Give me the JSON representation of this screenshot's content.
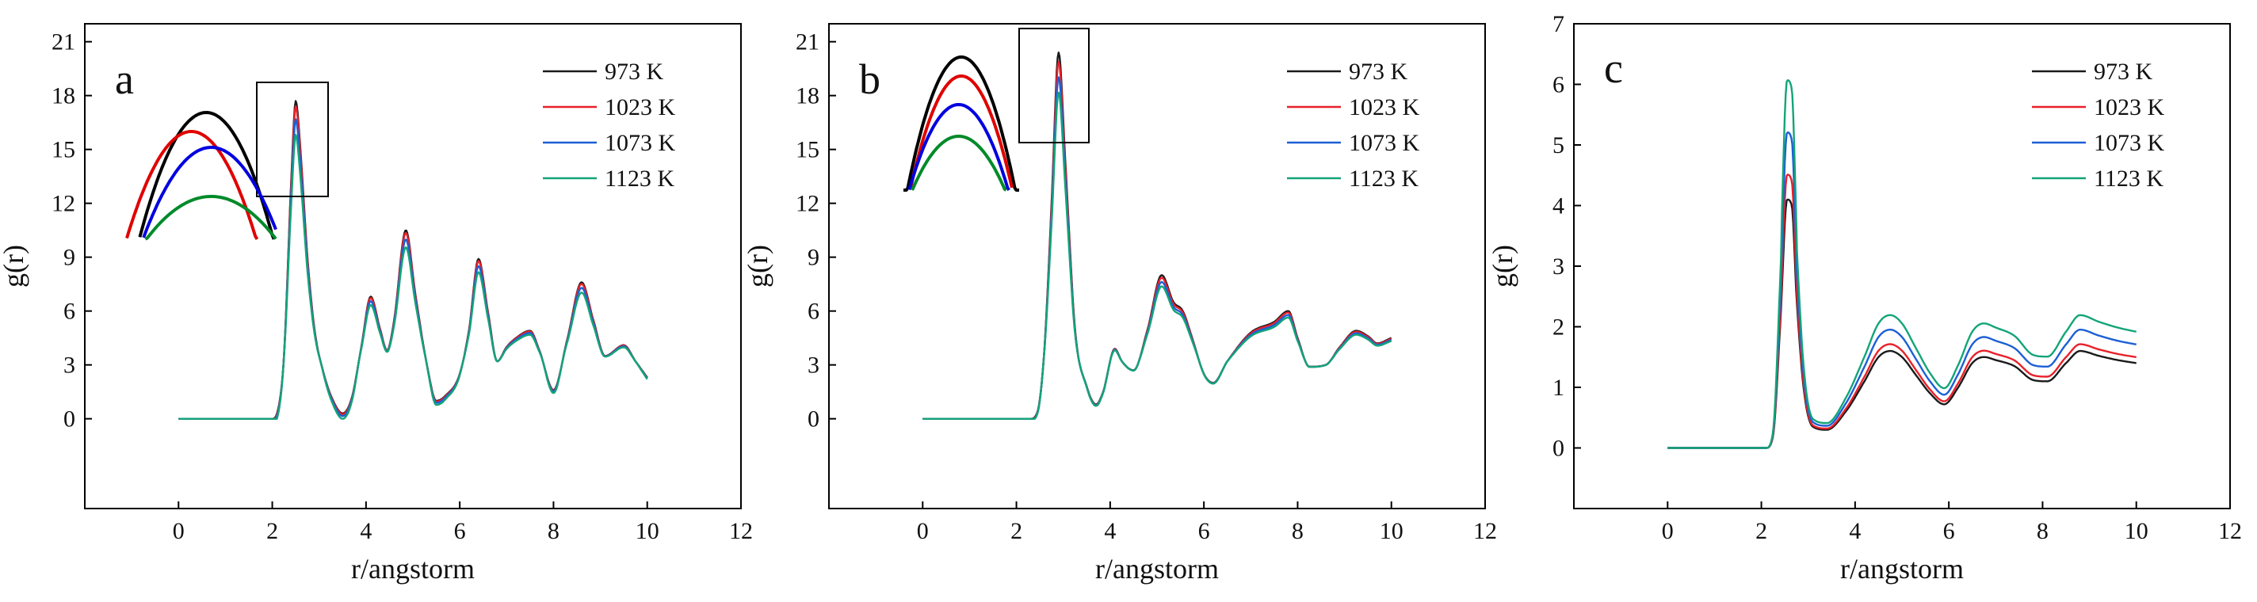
{
  "figure": {
    "panels": [
      "a",
      "b",
      "c"
    ]
  },
  "colors": {
    "973 K": "#1a1a1a",
    "1023 K": "#e8212a",
    "1073 K": "#1c5fd6",
    "1123 K": "#13a478"
  },
  "inset_colors": {
    "973 K": "#000000",
    "1023 K": "#e00000",
    "1073 K": "#0000e0",
    "1123 K": "#008a2a"
  },
  "chart_data": [
    {
      "type": "line",
      "panel": "a",
      "title": "",
      "xlabel": "r/angstorm",
      "ylabel": "g(r)",
      "xlim": [
        -2,
        12
      ],
      "ylim": [
        -5,
        22
      ],
      "xticks": [
        0,
        2,
        4,
        6,
        8,
        10,
        12
      ],
      "yticks": [
        0,
        3,
        6,
        9,
        12,
        15,
        18,
        21
      ],
      "legend_position": "top-right",
      "has_zoom_inset": true,
      "inset_xlim": [
        -1.1,
        1.9
      ],
      "inset_ylim": [
        0,
        1
      ],
      "keypoints": [
        [
          0,
          0
        ],
        [
          2.0,
          0
        ],
        [
          2.1,
          0.3
        ],
        [
          2.25,
          3.5
        ],
        [
          2.4,
          13.0
        ],
        [
          2.5,
          17.7
        ],
        [
          2.6,
          15.0
        ],
        [
          2.75,
          9.0
        ],
        [
          2.9,
          5.0
        ],
        [
          3.1,
          2.5
        ],
        [
          3.3,
          1.0
        ],
        [
          3.5,
          0.3
        ],
        [
          3.7,
          1.2
        ],
        [
          3.9,
          4.0
        ],
        [
          4.1,
          6.8
        ],
        [
          4.3,
          5.0
        ],
        [
          4.45,
          3.8
        ],
        [
          4.6,
          5.5
        ],
        [
          4.85,
          10.5
        ],
        [
          5.05,
          7.0
        ],
        [
          5.3,
          3.0
        ],
        [
          5.5,
          1.0
        ],
        [
          5.7,
          1.3
        ],
        [
          6.0,
          2.5
        ],
        [
          6.2,
          5.0
        ],
        [
          6.4,
          8.9
        ],
        [
          6.6,
          6.0
        ],
        [
          6.8,
          3.2
        ],
        [
          7.0,
          4.0
        ],
        [
          7.2,
          4.5
        ],
        [
          7.5,
          4.9
        ],
        [
          7.7,
          3.8
        ],
        [
          8.0,
          1.6
        ],
        [
          8.3,
          4.5
        ],
        [
          8.6,
          7.6
        ],
        [
          8.85,
          5.5
        ],
        [
          9.1,
          3.5
        ],
        [
          9.5,
          4.1
        ],
        [
          9.75,
          3.2
        ],
        [
          10.0,
          2.3
        ]
      ],
      "series": [
        {
          "name": "973 K",
          "peak_scale": 1.0,
          "valley_scale": 1.0,
          "inset_peak": 0.88,
          "inset_center": 0.5,
          "inset_base": 0.02
        },
        {
          "name": "1023 K",
          "peak_scale": 0.98,
          "valley_scale": 1.05,
          "inset_peak": 0.76,
          "inset_center": 0.2,
          "inset_base": -0.02
        },
        {
          "name": "1073 K",
          "peak_scale": 0.93,
          "valley_scale": 1.15,
          "inset_peak": 0.66,
          "inset_center": 0.6,
          "inset_base": 0.06
        },
        {
          "name": "1123 K",
          "peak_scale": 0.87,
          "valley_scale": 1.3,
          "inset_peak": 0.35,
          "inset_center": 0.6,
          "inset_base": 0.04
        }
      ]
    },
    {
      "type": "line",
      "panel": "b",
      "title": "",
      "xlabel": "r/angstorm",
      "ylabel": "g(r)",
      "xlim": [
        -2,
        12
      ],
      "ylim": [
        -5,
        22
      ],
      "xticks": [
        0,
        2,
        4,
        6,
        8,
        10,
        12
      ],
      "yticks": [
        0,
        3,
        6,
        9,
        12,
        15,
        18,
        21
      ],
      "legend_position": "top-right",
      "has_zoom_inset": true,
      "inset_xlim": [
        -0.2,
        2.0
      ],
      "inset_ylim": [
        0,
        1
      ],
      "keypoints": [
        [
          0,
          0
        ],
        [
          2.3,
          0
        ],
        [
          2.45,
          0.4
        ],
        [
          2.6,
          4.0
        ],
        [
          2.75,
          12.0
        ],
        [
          2.9,
          20.4
        ],
        [
          3.05,
          14.0
        ],
        [
          3.25,
          5.0
        ],
        [
          3.5,
          1.8
        ],
        [
          3.7,
          0.8
        ],
        [
          3.85,
          1.5
        ],
        [
          4.1,
          3.9
        ],
        [
          4.25,
          3.2
        ],
        [
          4.5,
          2.7
        ],
        [
          4.8,
          5.0
        ],
        [
          5.1,
          8.0
        ],
        [
          5.35,
          6.5
        ],
        [
          5.55,
          6.0
        ],
        [
          5.75,
          4.5
        ],
        [
          6.0,
          2.5
        ],
        [
          6.2,
          2.0
        ],
        [
          6.5,
          3.2
        ],
        [
          7.0,
          4.8
        ],
        [
          7.5,
          5.4
        ],
        [
          7.8,
          6.0
        ],
        [
          8.0,
          4.5
        ],
        [
          8.25,
          2.9
        ],
        [
          8.6,
          3.0
        ],
        [
          8.9,
          4.0
        ],
        [
          9.25,
          4.9
        ],
        [
          9.5,
          4.6
        ],
        [
          9.7,
          4.2
        ],
        [
          10.0,
          4.5
        ]
      ],
      "series": [
        {
          "name": "973 K",
          "peak_scale": 1.0,
          "valley_scale": 1.0,
          "inset_peak": 0.92,
          "inset_center": 0.9,
          "inset_base": 0.08
        },
        {
          "name": "1023 K",
          "peak_scale": 0.97,
          "valley_scale": 1.03,
          "inset_peak": 0.8,
          "inset_center": 0.9,
          "inset_base": 0.0
        },
        {
          "name": "1073 K",
          "peak_scale": 0.92,
          "valley_scale": 1.06,
          "inset_peak": 0.62,
          "inset_center": 0.85,
          "inset_base": -0.02
        },
        {
          "name": "1123 K",
          "peak_scale": 0.87,
          "valley_scale": 1.1,
          "inset_peak": 0.42,
          "inset_center": 0.85,
          "inset_base": -0.04
        }
      ]
    },
    {
      "type": "line",
      "panel": "c",
      "title": "",
      "xlabel": "r/angstorm",
      "ylabel": "g(r)",
      "xlim": [
        -2,
        12
      ],
      "ylim": [
        -1,
        7
      ],
      "xticks": [
        0,
        2,
        4,
        6,
        8,
        10,
        12
      ],
      "yticks": [
        0,
        1,
        2,
        3,
        4,
        5,
        6,
        7
      ],
      "legend_position": "top-right",
      "has_zoom_inset": false,
      "keypoints": [
        [
          0,
          0
        ],
        [
          2.1,
          0
        ],
        [
          2.25,
          0.2
        ],
        [
          2.4,
          2.0
        ],
        [
          2.55,
          4.1
        ],
        [
          2.65,
          4.0
        ],
        [
          2.75,
          2.5
        ],
        [
          2.9,
          1.0
        ],
        [
          3.1,
          0.35
        ],
        [
          3.4,
          0.3
        ],
        [
          3.8,
          0.6
        ],
        [
          4.2,
          1.1
        ],
        [
          4.5,
          1.5
        ],
        [
          4.75,
          1.6
        ],
        [
          5.0,
          1.5
        ],
        [
          5.3,
          1.2
        ],
        [
          5.6,
          0.9
        ],
        [
          5.9,
          0.72
        ],
        [
          6.2,
          1.0
        ],
        [
          6.5,
          1.4
        ],
        [
          6.75,
          1.5
        ],
        [
          7.0,
          1.45
        ],
        [
          7.4,
          1.35
        ],
        [
          7.8,
          1.12
        ],
        [
          8.1,
          1.1
        ],
        [
          8.5,
          1.4
        ],
        [
          8.8,
          1.6
        ],
        [
          9.2,
          1.52
        ],
        [
          9.6,
          1.45
        ],
        [
          10.0,
          1.4
        ]
      ],
      "series": [
        {
          "name": "973 K",
          "peak_scale": 1.0,
          "tail_scale": 1.0
        },
        {
          "name": "1023 K",
          "peak_scale": 1.1,
          "tail_scale": 1.07
        },
        {
          "name": "1073 K",
          "peak_scale": 1.27,
          "tail_scale": 1.22
        },
        {
          "name": "1123 K",
          "peak_scale": 1.48,
          "tail_scale": 1.37
        }
      ]
    }
  ]
}
